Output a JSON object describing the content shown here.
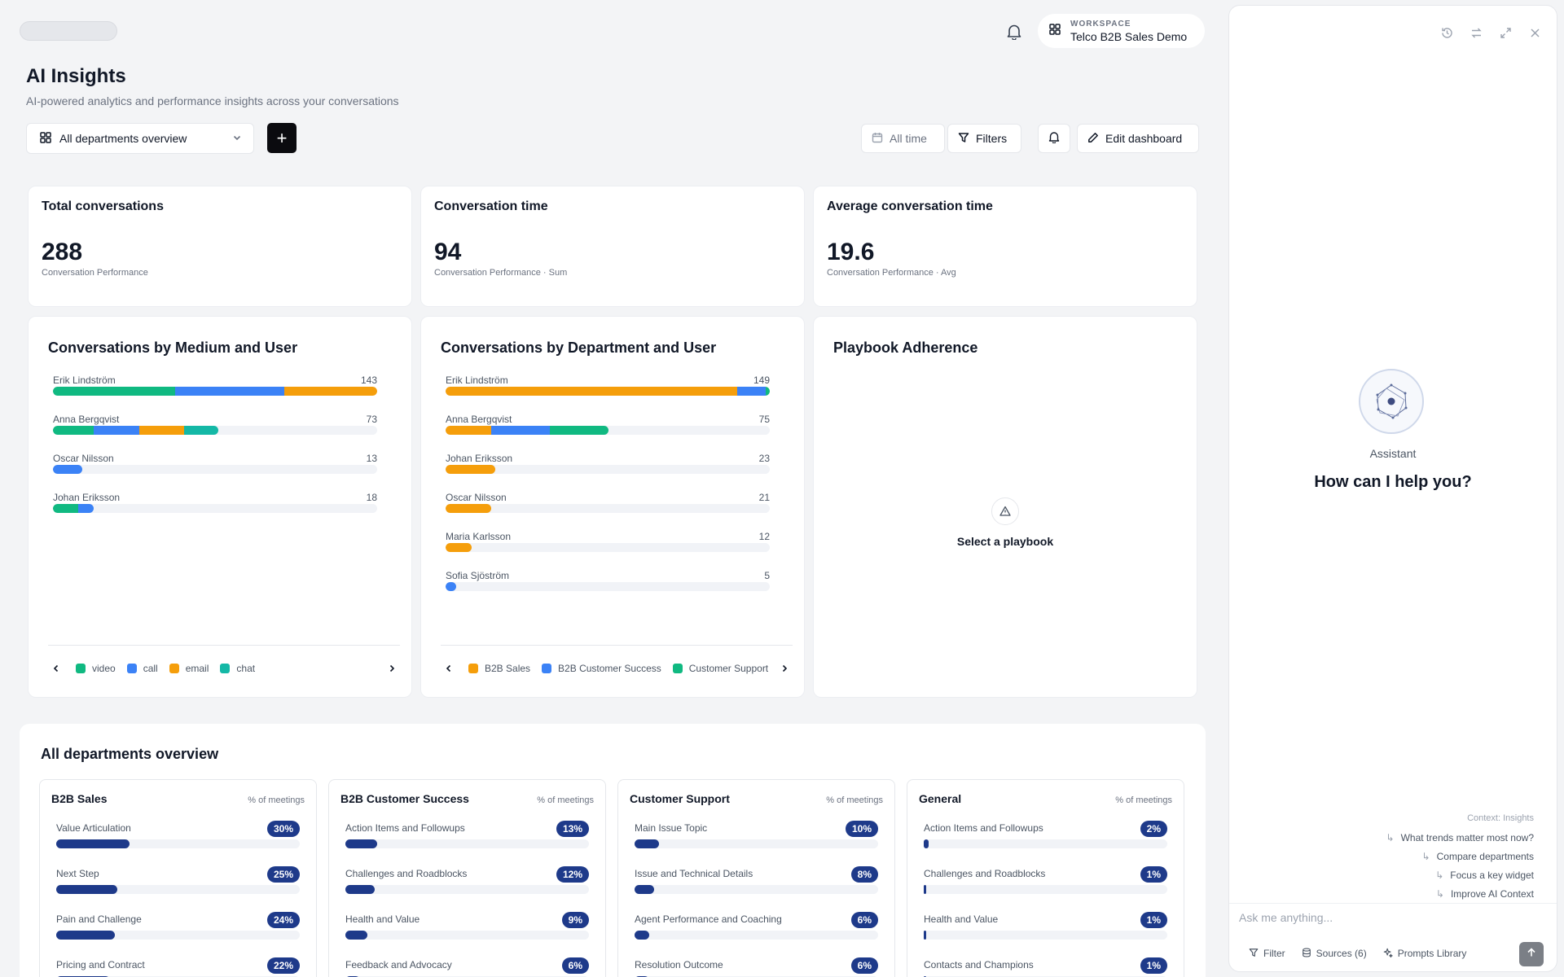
{
  "header": {
    "workspace_label": "WORKSPACE",
    "workspace_name": "Telco B2B Sales Demo"
  },
  "page": {
    "title": "AI Insights",
    "subtitle": "AI-powered analytics and performance insights across your conversations"
  },
  "toolbar": {
    "dashboard_select": "All departments overview",
    "add_label": "+",
    "time_label": "All time",
    "filters_label": "Filters",
    "edit_label": "Edit dashboard"
  },
  "stats": [
    {
      "title": "Total conversations",
      "value": "288",
      "sub": "Conversation Performance"
    },
    {
      "title": "Conversation time",
      "value": "94",
      "sub": "Conversation Performance · Sum"
    },
    {
      "title": "Average conversation time",
      "value": "19.6",
      "sub": "Conversation Performance · Avg"
    }
  ],
  "colors": {
    "green": "#10b981",
    "blue": "#3b82f6",
    "orange": "#f59e0b",
    "teal": "#14b8a6",
    "navy": "#1e3a8a"
  },
  "chart_medium": {
    "title": "Conversations by Medium and User",
    "legend": [
      {
        "label": "video",
        "color": "#10b981"
      },
      {
        "label": "call",
        "color": "#3b82f6"
      },
      {
        "label": "email",
        "color": "#f59e0b"
      },
      {
        "label": "chat",
        "color": "#14b8a6"
      }
    ]
  },
  "chart_department": {
    "title": "Conversations by Department and User",
    "legend": [
      {
        "label": "B2B Sales",
        "color": "#f59e0b"
      },
      {
        "label": "B2B Customer Success",
        "color": "#3b82f6"
      },
      {
        "label": "Customer Support",
        "color": "#10b981"
      }
    ]
  },
  "chart_data": [
    {
      "type": "bar",
      "title": "Conversations by Medium and User",
      "categories": [
        "Erik Lindström",
        "Anna Bergqvist",
        "Oscar Nilsson",
        "Johan Eriksson"
      ],
      "totals": [
        143,
        73,
        13,
        18
      ],
      "xlim": [
        0,
        143
      ],
      "series": [
        {
          "name": "video",
          "color": "#10b981",
          "values": [
            54,
            18,
            0,
            11
          ]
        },
        {
          "name": "call",
          "color": "#3b82f6",
          "values": [
            48,
            20,
            13,
            7
          ]
        },
        {
          "name": "email",
          "color": "#f59e0b",
          "values": [
            41,
            20,
            0,
            0
          ]
        },
        {
          "name": "chat",
          "color": "#14b8a6",
          "values": [
            0,
            15,
            0,
            0
          ]
        }
      ]
    },
    {
      "type": "bar",
      "title": "Conversations by Department and User",
      "categories": [
        "Erik Lindström",
        "Anna Bergqvist",
        "Johan Eriksson",
        "Oscar Nilsson",
        "Maria Karlsson",
        "Sofia Sjöström"
      ],
      "totals": [
        149,
        75,
        23,
        21,
        12,
        5
      ],
      "xlim": [
        0,
        149
      ],
      "series": [
        {
          "name": "B2B Sales",
          "color": "#f59e0b",
          "values": [
            134,
            21,
            23,
            21,
            12,
            0
          ]
        },
        {
          "name": "B2B Customer Success",
          "color": "#3b82f6",
          "values": [
            13,
            27,
            0,
            0,
            0,
            5
          ]
        },
        {
          "name": "Customer Support",
          "color": "#10b981",
          "values": [
            2,
            27,
            0,
            0,
            0,
            0
          ]
        }
      ]
    }
  ],
  "playbook": {
    "title": "Playbook Adherence",
    "empty_text": "Select a playbook"
  },
  "departments": {
    "title": "All departments overview",
    "unit_label": "% of meetings",
    "columns": [
      {
        "name": "B2B Sales",
        "rows": [
          {
            "label": "Value Articulation",
            "pct": 30,
            "text": "30%"
          },
          {
            "label": "Next Step",
            "pct": 25,
            "text": "25%"
          },
          {
            "label": "Pain and Challenge",
            "pct": 24,
            "text": "24%"
          },
          {
            "label": "Pricing and Contract",
            "pct": 22,
            "text": "22%"
          }
        ]
      },
      {
        "name": "B2B Customer Success",
        "rows": [
          {
            "label": "Action Items and Followups",
            "pct": 13,
            "text": "13%"
          },
          {
            "label": "Challenges and Roadblocks",
            "pct": 12,
            "text": "12%"
          },
          {
            "label": "Health and Value",
            "pct": 9,
            "text": "9%"
          },
          {
            "label": "Feedback and Advocacy",
            "pct": 6,
            "text": "6%"
          }
        ]
      },
      {
        "name": "Customer Support",
        "rows": [
          {
            "label": "Main Issue Topic",
            "pct": 10,
            "text": "10%"
          },
          {
            "label": "Issue and Technical Details",
            "pct": 8,
            "text": "8%"
          },
          {
            "label": "Agent Performance and Coaching",
            "pct": 6,
            "text": "6%"
          },
          {
            "label": "Resolution Outcome",
            "pct": 6,
            "text": "6%"
          }
        ]
      },
      {
        "name": "General",
        "rows": [
          {
            "label": "Action Items and Followups",
            "pct": 2,
            "text": "2%"
          },
          {
            "label": "Challenges and Roadblocks",
            "pct": 1,
            "text": "1%"
          },
          {
            "label": "Health and Value",
            "pct": 1,
            "text": "1%"
          },
          {
            "label": "Contacts and Champions",
            "pct": 1,
            "text": "1%"
          }
        ]
      }
    ]
  },
  "assistant": {
    "label": "Assistant",
    "greeting": "How can I help you?",
    "context": "Context: Insights",
    "suggestions": [
      "What trends matter most now?",
      "Compare departments",
      "Focus a key widget",
      "Improve AI Context"
    ],
    "placeholder": "Ask me anything...",
    "filter_label": "Filter",
    "sources_label": "Sources (6)",
    "prompts_label": "Prompts Library"
  }
}
